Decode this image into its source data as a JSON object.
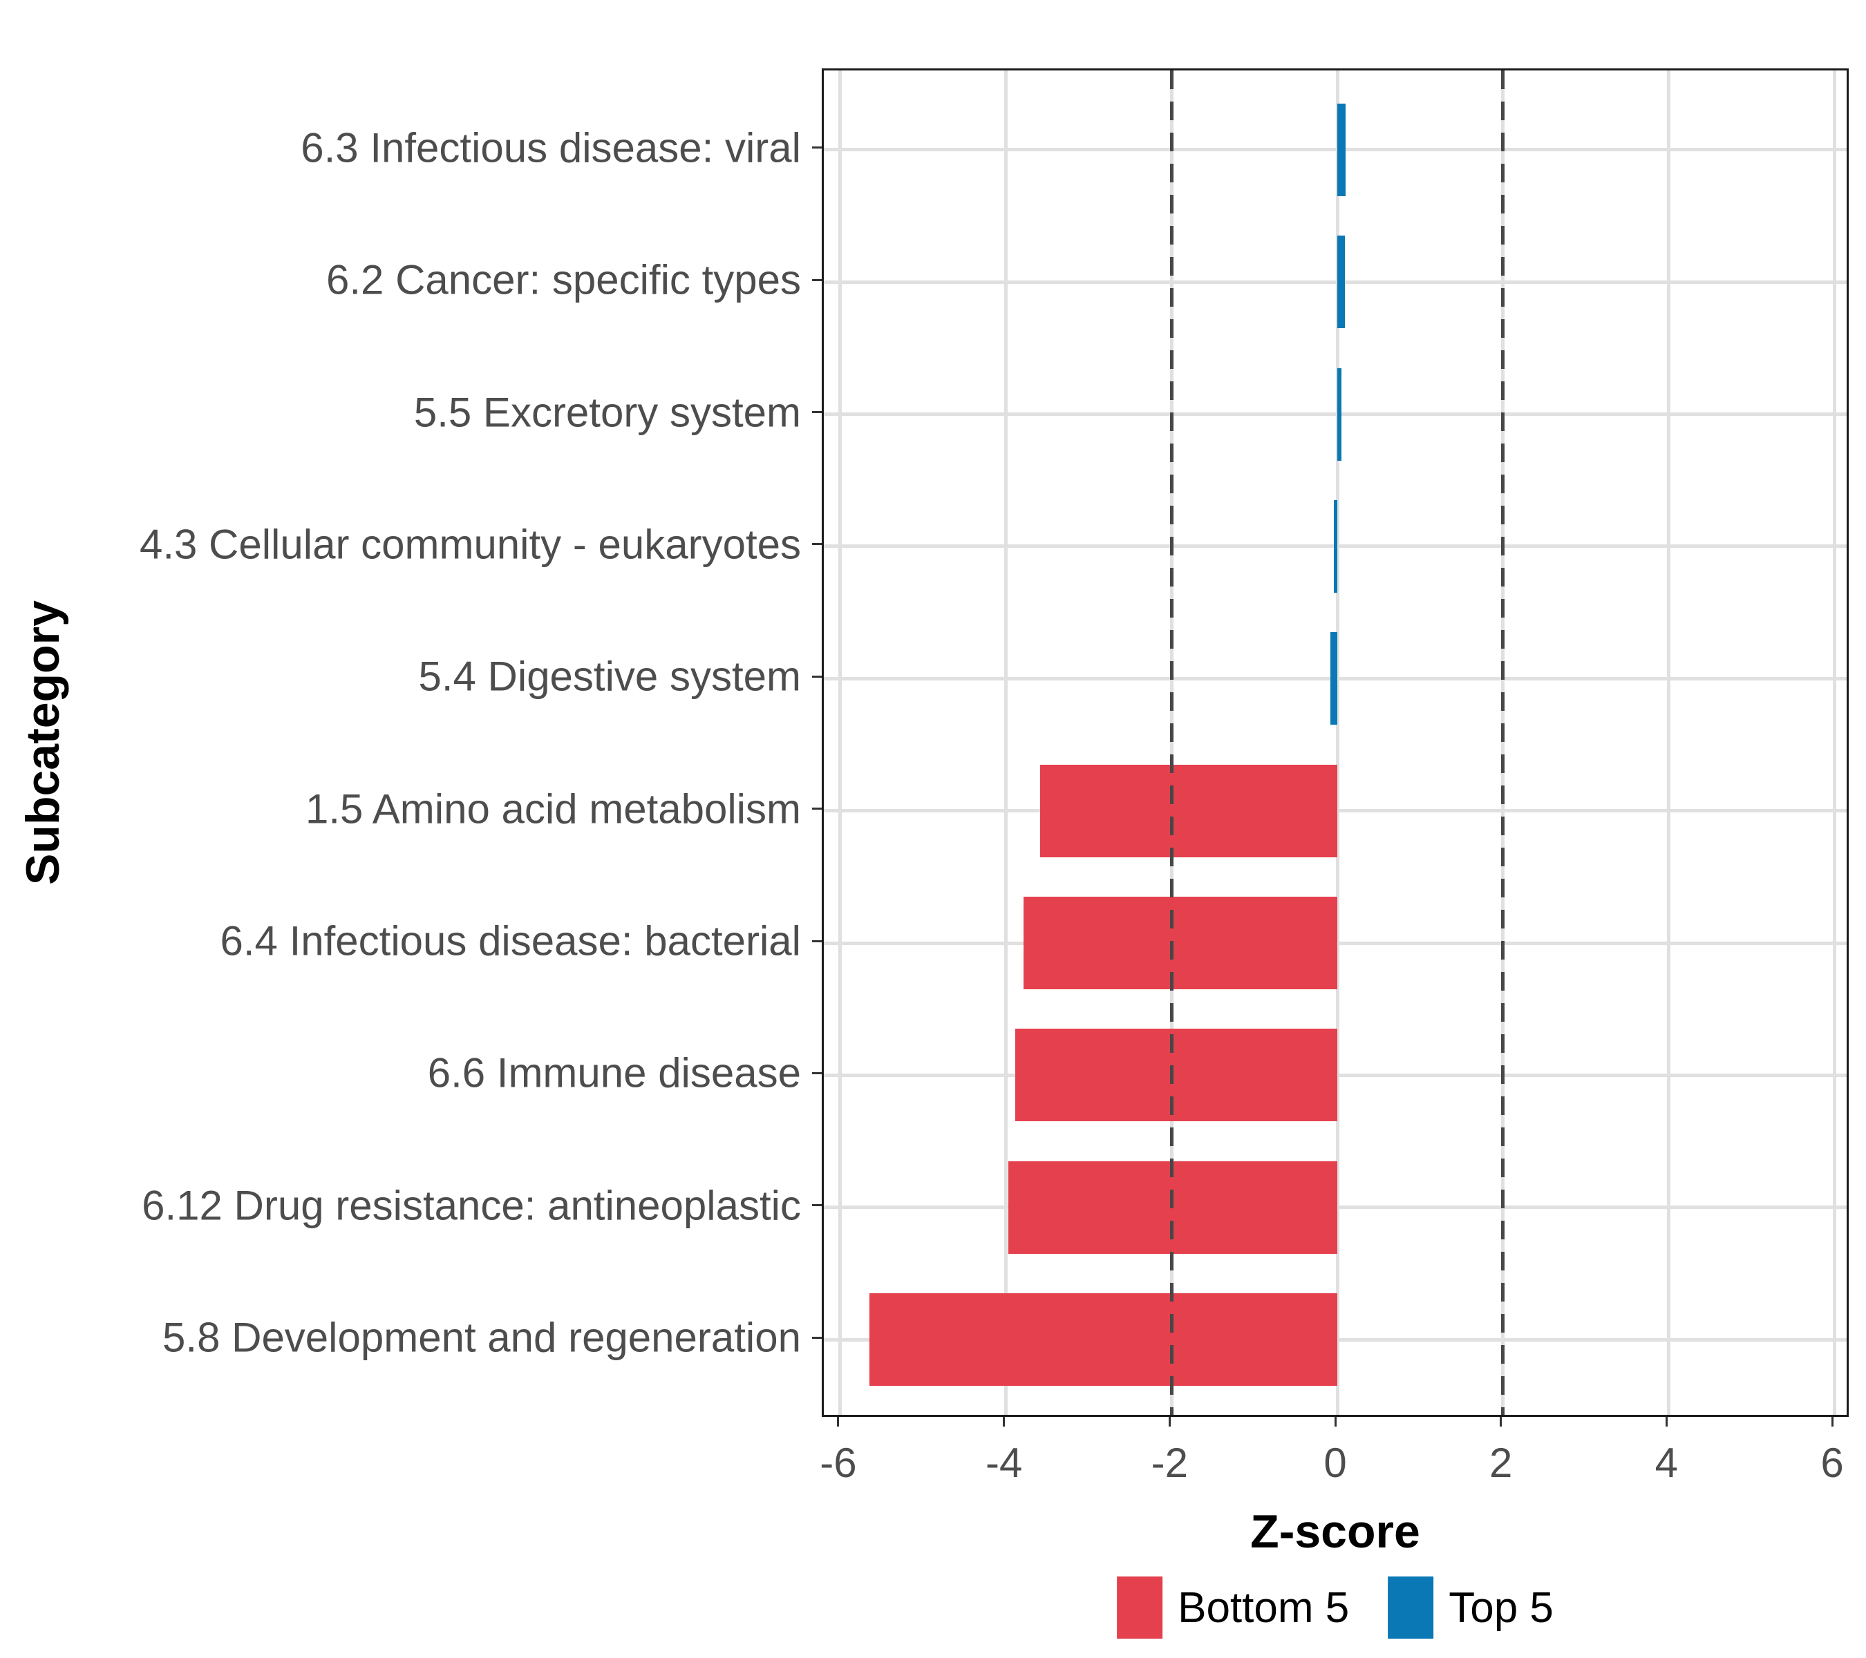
{
  "chart_data": {
    "type": "bar",
    "orientation": "horizontal",
    "xlabel": "Z-score",
    "ylabel": "Subcategory",
    "categories": [
      "6.3 Infectious disease: viral",
      "6.2 Cancer: specific types",
      "5.5 Excretory system",
      "4.3 Cellular community - eukaryotes",
      "5.4 Digestive system",
      "1.5 Amino acid metabolism",
      "6.4 Infectious disease: bacterial",
      "6.6 Immune disease",
      "6.12 Drug resistance: antineoplastic",
      "5.8 Development and regeneration"
    ],
    "values": [
      0.1,
      0.09,
      0.05,
      -0.04,
      -0.08,
      -3.59,
      -3.79,
      -3.89,
      -3.97,
      -5.65
    ],
    "groups": [
      "Top 5",
      "Top 5",
      "Top 5",
      "Top 5",
      "Top 5",
      "Bottom 5",
      "Bottom 5",
      "Bottom 5",
      "Bottom 5",
      "Bottom 5"
    ],
    "x_ticks": [
      -6,
      -4,
      -2,
      0,
      2,
      4,
      6
    ],
    "x_tick_labels": [
      "-6",
      "-4",
      "-2",
      "0",
      "2",
      "4",
      "6"
    ],
    "xlim": [
      -6.2,
      6.2
    ],
    "reference_lines": [
      -2,
      2
    ],
    "grid": "major-only",
    "legend_position": "bottom",
    "legend": [
      {
        "label": "Bottom 5",
        "color": "#E5404E"
      },
      {
        "label": "Top 5",
        "color": "#0978B5"
      }
    ],
    "colors": {
      "bottom5": "#E5404E",
      "top5": "#0978B5",
      "gridline": "#E0E0E0",
      "reference_line": "#474747",
      "axis_text": "#4D4D4D",
      "panel_border": "#1A1A1A"
    }
  }
}
